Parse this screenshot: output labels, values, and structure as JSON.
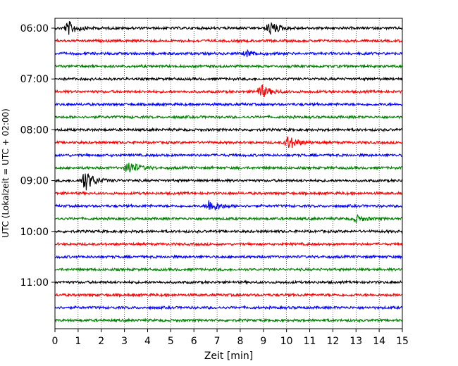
{
  "chart_data": {
    "type": "line",
    "xlabel": "Zeit  [min]",
    "ylabel": "UTC (Lokalzeit = UTC + 02:00)",
    "xlim": [
      0,
      15
    ],
    "x_ticks": [
      0,
      1,
      2,
      3,
      4,
      5,
      6,
      7,
      8,
      9,
      10,
      11,
      12,
      13,
      14,
      15
    ],
    "grid": "vertical dotted",
    "trace_interval_min": 15,
    "y_tick_labels": [
      "06:00",
      "07:00",
      "08:00",
      "09:00",
      "10:00",
      "11:00"
    ],
    "traces": [
      {
        "start": "06:00",
        "color": "#000000",
        "events": [
          [
            0.6,
            1.0
          ],
          [
            9.3,
            1.0
          ]
        ]
      },
      {
        "start": "06:15",
        "color": "#ff0000",
        "events": []
      },
      {
        "start": "06:30",
        "color": "#0000ff",
        "events": [
          [
            8.3,
            0.45
          ]
        ]
      },
      {
        "start": "06:45",
        "color": "#008000",
        "events": []
      },
      {
        "start": "07:00",
        "color": "#000000",
        "events": []
      },
      {
        "start": "07:15",
        "color": "#ff0000",
        "events": [
          [
            8.9,
            1.0
          ]
        ]
      },
      {
        "start": "07:30",
        "color": "#0000ff",
        "events": []
      },
      {
        "start": "07:45",
        "color": "#008000",
        "events": []
      },
      {
        "start": "08:00",
        "color": "#000000",
        "events": []
      },
      {
        "start": "08:15",
        "color": "#ff0000",
        "events": [
          [
            10.1,
            1.0
          ]
        ]
      },
      {
        "start": "08:30",
        "color": "#0000ff",
        "events": []
      },
      {
        "start": "08:45",
        "color": "#008000",
        "events": [
          [
            3.2,
            1.0
          ]
        ]
      },
      {
        "start": "09:00",
        "color": "#000000",
        "events": [
          [
            1.3,
            1.6
          ]
        ]
      },
      {
        "start": "09:15",
        "color": "#ff0000",
        "events": []
      },
      {
        "start": "09:30",
        "color": "#0000ff",
        "events": [
          [
            6.7,
            1.0
          ]
        ]
      },
      {
        "start": "09:45",
        "color": "#008000",
        "events": [
          [
            13.0,
            0.5
          ]
        ]
      },
      {
        "start": "10:00",
        "color": "#000000",
        "events": []
      },
      {
        "start": "10:15",
        "color": "#ff0000",
        "events": []
      },
      {
        "start": "10:30",
        "color": "#0000ff",
        "events": []
      },
      {
        "start": "10:45",
        "color": "#008000",
        "events": []
      },
      {
        "start": "11:00",
        "color": "#000000",
        "events": []
      },
      {
        "start": "11:15",
        "color": "#ff0000",
        "events": []
      },
      {
        "start": "11:30",
        "color": "#0000ff",
        "events": []
      },
      {
        "start": "11:45",
        "color": "#008000",
        "events": []
      }
    ]
  }
}
